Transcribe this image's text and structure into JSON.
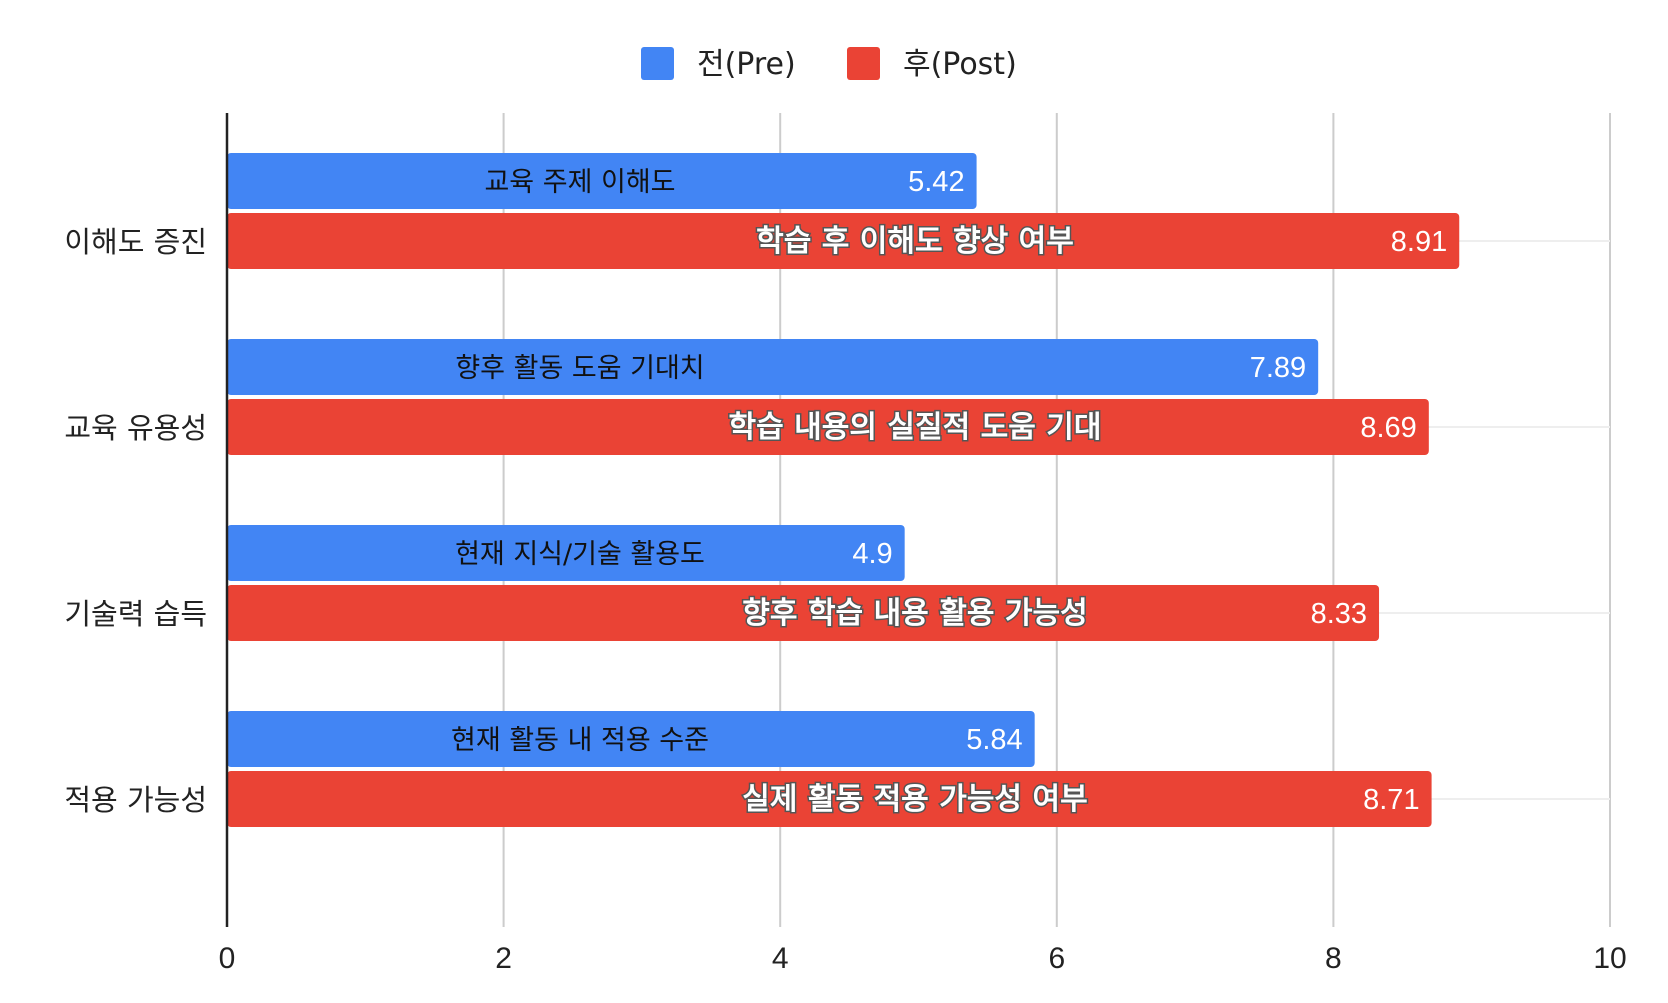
{
  "chart_data": {
    "type": "bar",
    "orientation": "horizontal",
    "categories": [
      "이해도 증진",
      "교육 유용성",
      "기술력 습득",
      "적용 가능성"
    ],
    "series": [
      {
        "name": "전(Pre)",
        "color": "#4285F4",
        "values": [
          5.42,
          7.89,
          4.9,
          5.84
        ],
        "value_labels": [
          "5.42",
          "7.89",
          "4.9",
          "5.84"
        ],
        "annotations": [
          "교육 주제 이해도",
          "향후 활동 도움 기대치",
          "현재 지식/기술 활용도",
          "현재 활동 내 적용 수준"
        ]
      },
      {
        "name": "후(Post)",
        "color": "#EA4335",
        "values": [
          8.91,
          8.69,
          8.33,
          8.71
        ],
        "value_labels": [
          "8.91",
          "8.69",
          "8.33",
          "8.71"
        ],
        "annotations": [
          "학습 후 이해도 향상 여부",
          "학습 내용의 실질적 도움 기대",
          "향후 학습 내용 활용 가능성",
          "실제 활동 적용 가능성 여부"
        ]
      }
    ],
    "xlim": [
      0,
      10
    ],
    "x_ticks": [
      0,
      2,
      4,
      6,
      8,
      10
    ],
    "x_tick_labels": [
      "0",
      "2",
      "4",
      "6",
      "8",
      "10"
    ],
    "grid": true,
    "legend": "top-center"
  }
}
